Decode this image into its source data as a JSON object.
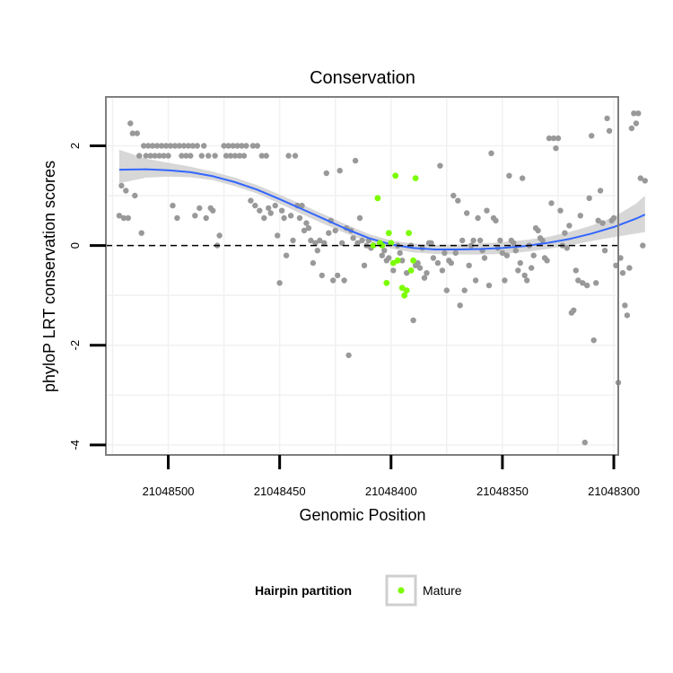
{
  "chart_data": {
    "type": "scatter",
    "title": "Conservation",
    "xlabel": "Genomic Position",
    "ylabel": "phyloP LRT conservation scores",
    "x_reversed": true,
    "xlim": [
      21048528,
      21048298
    ],
    "ylim": [
      -4.2,
      2.98
    ],
    "x_ticks": [
      21048500,
      21048450,
      21048400,
      21048350,
      21048300
    ],
    "y_ticks": [
      -4,
      -2,
      0,
      2
    ],
    "reference_line_y": 0,
    "legend": {
      "title": "Hairpin partition",
      "entries": [
        "Mature"
      ],
      "placement": "bottom"
    },
    "colors": {
      "other_points": "#999999",
      "mature_points": "#7cfc00",
      "smooth_line": "#3366ff",
      "confidence_band": "#d0d0d0"
    },
    "series": [
      {
        "points": [
          [
            21048522,
            0.6
          ],
          [
            21048521,
            1.2
          ],
          [
            21048520,
            0.55
          ],
          [
            21048519,
            1.1
          ],
          [
            21048518,
            0.55
          ],
          [
            21048517,
            2.45
          ],
          [
            21048516,
            2.25
          ],
          [
            21048515,
            1.0
          ],
          [
            21048514,
            2.25
          ],
          [
            21048513,
            1.8
          ],
          [
            21048512,
            0.25
          ],
          [
            21048511,
            2.0
          ],
          [
            21048510,
            1.8
          ],
          [
            21048509,
            2.0
          ],
          [
            21048508,
            1.8
          ],
          [
            21048507,
            2.0
          ],
          [
            21048506,
            1.8
          ],
          [
            21048505,
            2.0
          ],
          [
            21048504,
            1.8
          ],
          [
            21048503,
            2.0
          ],
          [
            21048502,
            1.8
          ],
          [
            21048501,
            2.0
          ],
          [
            21048500,
            1.8
          ],
          [
            21048499,
            2.0
          ],
          [
            21048498,
            0.8
          ],
          [
            21048497,
            2.0
          ],
          [
            21048496,
            0.55
          ],
          [
            21048495,
            2.0
          ],
          [
            21048494,
            1.8
          ],
          [
            21048493,
            2.0
          ],
          [
            21048492,
            1.8
          ],
          [
            21048491,
            2.0
          ],
          [
            21048490,
            1.8
          ],
          [
            21048489,
            2.0
          ],
          [
            21048488,
            0.6
          ],
          [
            21048487,
            2.0
          ],
          [
            21048486,
            0.75
          ],
          [
            21048485,
            1.8
          ],
          [
            21048484,
            2.0
          ],
          [
            21048483,
            0.55
          ],
          [
            21048482,
            1.8
          ],
          [
            21048481,
            0.75
          ],
          [
            21048480,
            0.7
          ],
          [
            21048479,
            1.8
          ],
          [
            21048478,
            0.0
          ],
          [
            21048477,
            0.2
          ],
          [
            21048475,
            2.0
          ],
          [
            21048474,
            1.8
          ],
          [
            21048473,
            2.0
          ],
          [
            21048472,
            1.8
          ],
          [
            21048471,
            2.0
          ],
          [
            21048470,
            1.8
          ],
          [
            21048469,
            2.0
          ],
          [
            21048468,
            1.8
          ],
          [
            21048467,
            2.0
          ],
          [
            21048466,
            1.8
          ],
          [
            21048465,
            2.0
          ],
          [
            21048463,
            0.9
          ],
          [
            21048462,
            2.0
          ],
          [
            21048461,
            0.8
          ],
          [
            21048460,
            2.0
          ],
          [
            21048459,
            0.7
          ],
          [
            21048458,
            1.8
          ],
          [
            21048457,
            0.55
          ],
          [
            21048456,
            1.8
          ],
          [
            21048455,
            0.75
          ],
          [
            21048454,
            0.65
          ],
          [
            21048452,
            0.8
          ],
          [
            21048451,
            0.2
          ],
          [
            21048450,
            -0.75
          ],
          [
            21048449,
            0.7
          ],
          [
            21048448,
            0.55
          ],
          [
            21048447,
            -0.2
          ],
          [
            21048446,
            1.8
          ],
          [
            21048445,
            0.6
          ],
          [
            21048444,
            0.1
          ],
          [
            21048443,
            1.8
          ],
          [
            21048442,
            0.8
          ],
          [
            21048441,
            0.55
          ],
          [
            21048440,
            0.8
          ],
          [
            21048439,
            0.3
          ],
          [
            21048438,
            0.45
          ],
          [
            21048437,
            0.35
          ],
          [
            21048436,
            0.1
          ],
          [
            21048435,
            -0.35
          ],
          [
            21048434,
            0.05
          ],
          [
            21048433,
            -0.1
          ],
          [
            21048432,
            0.1
          ],
          [
            21048431,
            -0.6
          ],
          [
            21048430,
            0.05
          ],
          [
            21048429,
            1.45
          ],
          [
            21048428,
            0.25
          ],
          [
            21048427,
            0.5
          ],
          [
            21048426,
            -0.7
          ],
          [
            21048425,
            0.3
          ],
          [
            21048424,
            -0.6
          ],
          [
            21048423,
            1.5
          ],
          [
            21048422,
            0.05
          ],
          [
            21048421,
            -0.7
          ],
          [
            21048420,
            0.35
          ],
          [
            21048419,
            -2.2
          ],
          [
            21048418,
            0.3
          ],
          [
            21048417,
            0.15
          ],
          [
            21048416,
            1.7
          ],
          [
            21048415,
            0.05
          ],
          [
            21048414,
            0.55
          ],
          [
            21048413,
            0.1
          ],
          [
            21048412,
            -0.4
          ],
          [
            21048411,
            0.0
          ],
          [
            21048410,
            0.1
          ],
          [
            21048409,
            -0.05
          ],
          [
            21048404,
            -0.2
          ],
          [
            21048403,
            -0.1
          ],
          [
            21048402,
            -0.3
          ],
          [
            21048401,
            -0.25
          ],
          [
            21048399,
            -0.5
          ],
          [
            21048397,
            0.0
          ],
          [
            21048396,
            -0.15
          ],
          [
            21048395,
            -0.3
          ],
          [
            21048393,
            -0.55
          ],
          [
            21048391,
            0.0
          ],
          [
            21048390,
            -1.5
          ],
          [
            21048389,
            -0.4
          ],
          [
            21048388,
            -0.35
          ],
          [
            21048387,
            -0.45
          ],
          [
            21048386,
            -0.05
          ],
          [
            21048385,
            -0.65
          ],
          [
            21048384,
            -0.55
          ],
          [
            21048383,
            0.05
          ],
          [
            21048382,
            0.05
          ],
          [
            21048381,
            -0.25
          ],
          [
            21048379,
            -0.35
          ],
          [
            21048378,
            1.6
          ],
          [
            21048377,
            -0.5
          ],
          [
            21048376,
            -0.15
          ],
          [
            21048375,
            -0.9
          ],
          [
            21048374,
            -0.3
          ],
          [
            21048373,
            -0.35
          ],
          [
            21048372,
            1.0
          ],
          [
            21048371,
            -0.15
          ],
          [
            21048370,
            0.9
          ],
          [
            21048369,
            -1.2
          ],
          [
            21048368,
            0.1
          ],
          [
            21048367,
            -0.9
          ],
          [
            21048366,
            0.65
          ],
          [
            21048365,
            -0.4
          ],
          [
            21048364,
            0.0
          ],
          [
            21048363,
            0.1
          ],
          [
            21048362,
            -0.7
          ],
          [
            21048361,
            0.55
          ],
          [
            21048360,
            0.1
          ],
          [
            21048359,
            -0.1
          ],
          [
            21048358,
            -0.25
          ],
          [
            21048357,
            0.7
          ],
          [
            21048356,
            -0.8
          ],
          [
            21048355,
            1.85
          ],
          [
            21048354,
            0.55
          ],
          [
            21048353,
            0.5
          ],
          [
            21048352,
            -0.05
          ],
          [
            21048351,
            0.1
          ],
          [
            21048350,
            -0.15
          ],
          [
            21048349,
            -0.7
          ],
          [
            21048348,
            -0.2
          ],
          [
            21048347,
            1.4
          ],
          [
            21048346,
            0.1
          ],
          [
            21048345,
            0.05
          ],
          [
            21048344,
            -0.1
          ],
          [
            21048343,
            -0.5
          ],
          [
            21048342,
            -0.35
          ],
          [
            21048341,
            1.35
          ],
          [
            21048340,
            -0.6
          ],
          [
            21048339,
            -0.7
          ],
          [
            21048338,
            0.0
          ],
          [
            21048337,
            -0.45
          ],
          [
            21048336,
            -0.2
          ],
          [
            21048335,
            0.35
          ],
          [
            21048334,
            0.3
          ],
          [
            21048333,
            0.15
          ],
          [
            21048332,
            0.1
          ],
          [
            21048331,
            -0.25
          ],
          [
            21048330,
            -0.3
          ],
          [
            21048329,
            2.15
          ],
          [
            21048328,
            0.85
          ],
          [
            21048327,
            2.15
          ],
          [
            21048326,
            1.95
          ],
          [
            21048325,
            2.15
          ],
          [
            21048324,
            0.7
          ],
          [
            21048323,
            0.0
          ],
          [
            21048322,
            0.25
          ],
          [
            21048321,
            -0.05
          ],
          [
            21048320,
            0.4
          ],
          [
            21048319,
            -1.35
          ],
          [
            21048318,
            -1.3
          ],
          [
            21048317,
            -0.5
          ],
          [
            21048316,
            -0.7
          ],
          [
            21048315,
            0.6
          ],
          [
            21048314,
            -0.75
          ],
          [
            21048313,
            -3.95
          ],
          [
            21048312,
            -0.8
          ],
          [
            21048311,
            0.95
          ],
          [
            21048310,
            2.2
          ],
          [
            21048309,
            -1.9
          ],
          [
            21048308,
            -0.75
          ],
          [
            21048307,
            0.5
          ],
          [
            21048306,
            1.1
          ],
          [
            21048305,
            0.45
          ],
          [
            21048304,
            -0.1
          ],
          [
            21048303,
            2.55
          ],
          [
            21048302,
            2.3
          ],
          [
            21048301,
            0.5
          ],
          [
            21048300,
            0.55
          ],
          [
            21048299,
            -0.4
          ],
          [
            21048298,
            -2.75
          ],
          [
            21048297,
            -0.25
          ],
          [
            21048296,
            -0.55
          ],
          [
            21048295,
            -1.2
          ],
          [
            21048294,
            -1.4
          ],
          [
            21048293,
            -0.45
          ],
          [
            21048292,
            2.35
          ],
          [
            21048291,
            2.65
          ],
          [
            21048290,
            2.45
          ],
          [
            21048289,
            2.65
          ],
          [
            21048288,
            1.35
          ],
          [
            21048287,
            0.0
          ],
          [
            21048286,
            1.3
          ]
        ]
      },
      {
        "name": "Mature",
        "points": [
          [
            21048408,
            0.0
          ],
          [
            21048406,
            0.95
          ],
          [
            21048405,
            0.05
          ],
          [
            21048404,
            0.0
          ],
          [
            21048402,
            -0.75
          ],
          [
            21048401,
            0.25
          ],
          [
            21048400,
            0.05
          ],
          [
            21048399,
            -0.35
          ],
          [
            21048398,
            1.4
          ],
          [
            21048397,
            -0.3
          ],
          [
            21048395,
            -0.85
          ],
          [
            21048394,
            -1.0
          ],
          [
            21048393,
            -0.9
          ],
          [
            21048392,
            0.25
          ],
          [
            21048391,
            -0.5
          ],
          [
            21048390,
            -0.3
          ],
          [
            21048389,
            1.35
          ]
        ]
      }
    ],
    "smooth": {
      "x": [
        21048522,
        21048510,
        21048500,
        21048490,
        21048480,
        21048470,
        21048460,
        21048450,
        21048440,
        21048430,
        21048420,
        21048410,
        21048400,
        21048390,
        21048380,
        21048370,
        21048360,
        21048350,
        21048340,
        21048330,
        21048320,
        21048310,
        21048300,
        21048290,
        21048286
      ],
      "y": [
        1.52,
        1.53,
        1.51,
        1.47,
        1.39,
        1.27,
        1.12,
        0.93,
        0.73,
        0.53,
        0.33,
        0.15,
        0.02,
        -0.05,
        -0.08,
        -0.08,
        -0.07,
        -0.05,
        -0.01,
        0.05,
        0.13,
        0.24,
        0.37,
        0.54,
        0.62
      ],
      "lower": [
        1.25,
        1.36,
        1.38,
        1.37,
        1.31,
        1.19,
        1.04,
        0.84,
        0.63,
        0.43,
        0.24,
        0.07,
        -0.06,
        -0.14,
        -0.17,
        -0.18,
        -0.18,
        -0.17,
        -0.13,
        -0.07,
        0.0,
        0.09,
        0.17,
        0.24,
        0.27
      ],
      "upper": [
        1.92,
        1.74,
        1.66,
        1.58,
        1.48,
        1.36,
        1.21,
        1.02,
        0.82,
        0.62,
        0.42,
        0.23,
        0.1,
        0.04,
        0.01,
        0.02,
        0.04,
        0.07,
        0.11,
        0.17,
        0.27,
        0.4,
        0.57,
        0.84,
        1.0
      ]
    }
  }
}
